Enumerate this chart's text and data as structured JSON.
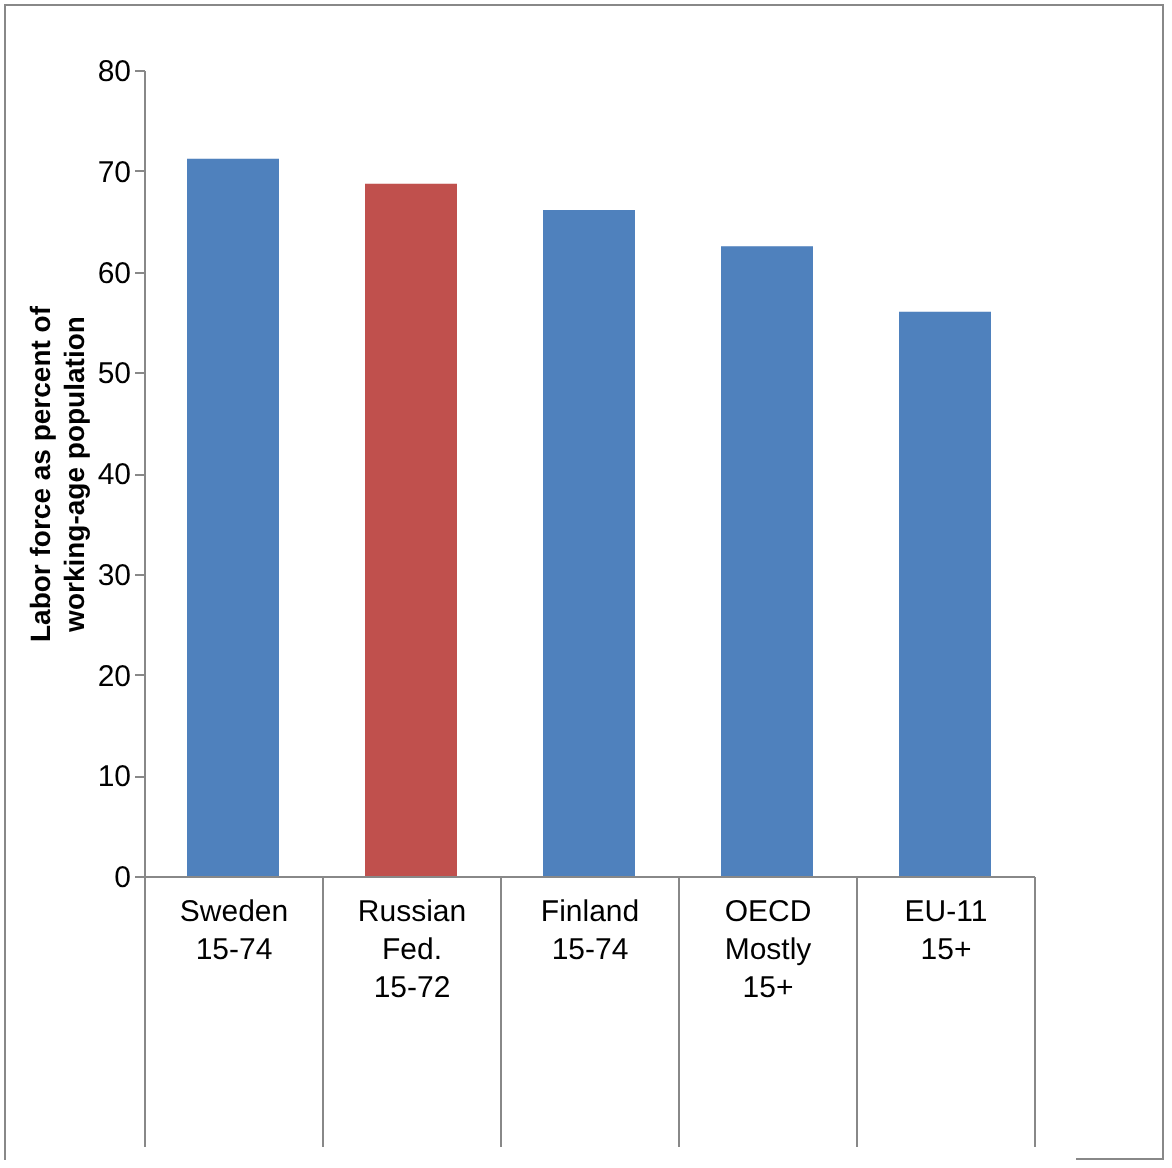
{
  "chart_data": {
    "type": "bar",
    "ylabel": "Labor force as percent of working-age population",
    "categories": [
      "Sweden\n\n\n15-74",
      "Russian\nFed.\n\n15-72",
      "Finland\n\n\n15-74",
      "OECD\n\n\nMostly\n15+",
      "EU-11\n\n\n15+"
    ],
    "values": [
      71.2,
      68.7,
      66.1,
      62.5,
      56.0
    ],
    "colors": [
      "#4f81bd",
      "#c0504d",
      "#4f81bd",
      "#4f81bd",
      "#4f81bd"
    ],
    "ylim": [
      0,
      80
    ],
    "yticks": [
      0,
      10,
      20,
      30,
      40,
      50,
      60,
      70,
      80
    ],
    "grid": false,
    "legend": false
  }
}
